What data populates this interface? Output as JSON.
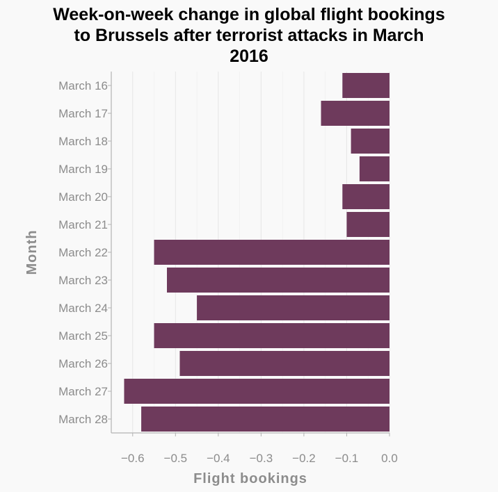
{
  "chart_data": {
    "type": "bar",
    "orientation": "horizontal",
    "title": "Week-on-week change in global flight bookings to Brussels after terrorist attacks in March 2016",
    "title_lines": [
      "Week-on-week change in global flight bookings",
      "to Brussels after terrorist attacks in March",
      "2016"
    ],
    "xlabel": "Flight bookings",
    "ylabel": "Month",
    "categories": [
      "March 16",
      "March 17",
      "March 18",
      "March 19",
      "March 20",
      "March 21",
      "March 22",
      "March 23",
      "March 24",
      "March 25",
      "March 26",
      "March 27",
      "March 28"
    ],
    "values": [
      -0.11,
      -0.16,
      -0.09,
      -0.07,
      -0.11,
      -0.1,
      -0.55,
      -0.52,
      -0.45,
      -0.55,
      -0.49,
      -0.62,
      -0.58
    ],
    "xlim": [
      -0.65,
      0.0
    ],
    "xticks": [
      -0.6,
      -0.5,
      -0.4,
      -0.3,
      -0.2,
      -0.1,
      0.0
    ],
    "xtick_labels": [
      "−0.6",
      "−0.5",
      "−0.4",
      "−0.3",
      "−0.2",
      "−0.1",
      "0.0"
    ],
    "grid": "vertical",
    "legend": "none",
    "bar_color": "#6e3a5c",
    "background_color": "#f9f9f9"
  }
}
